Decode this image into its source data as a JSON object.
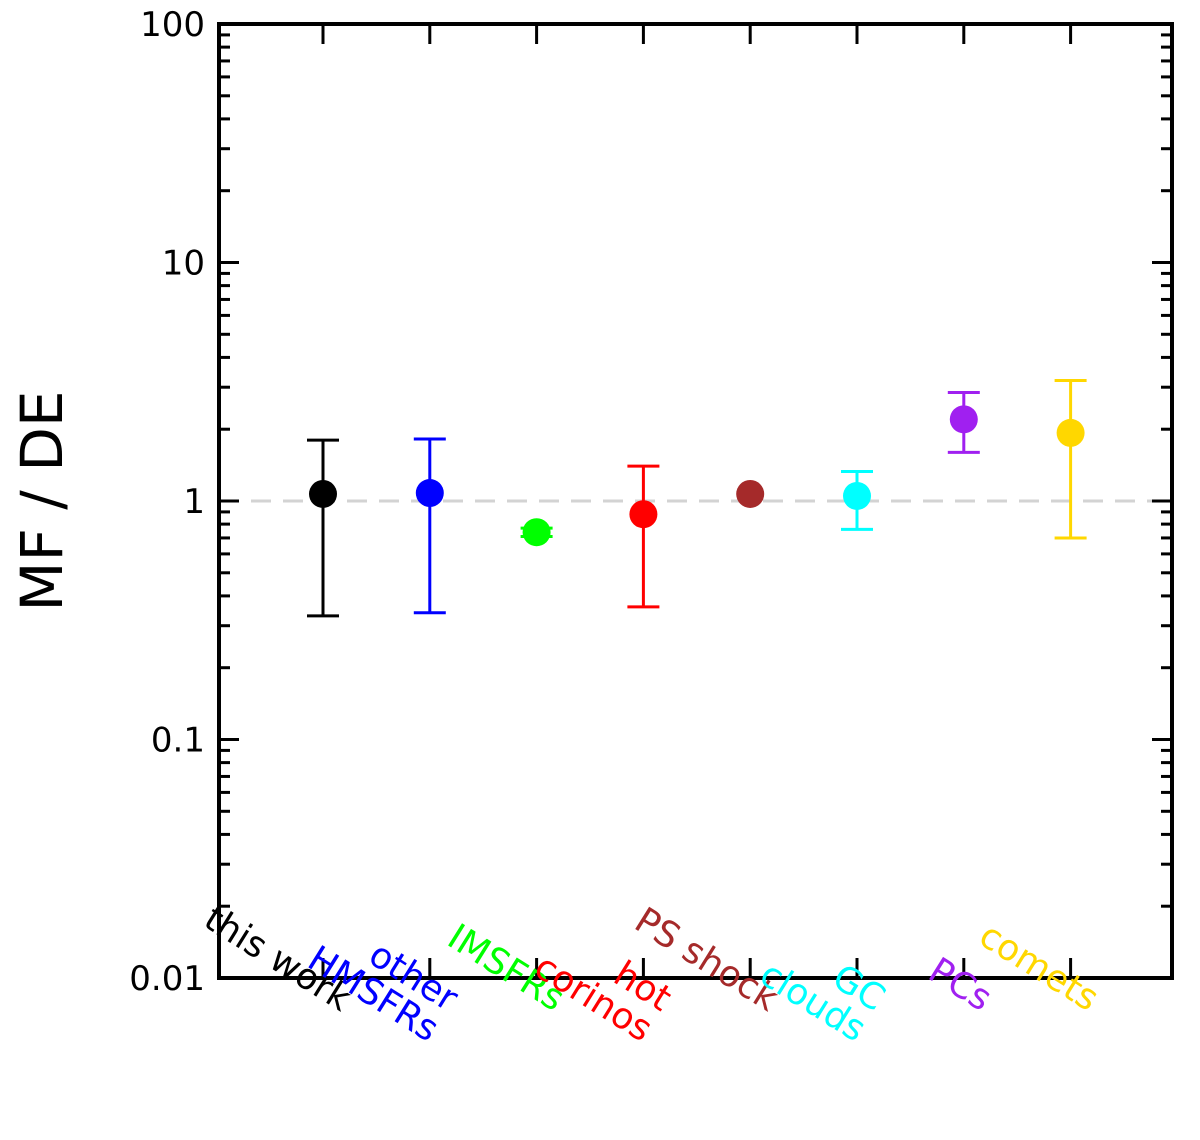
{
  "chart_data": {
    "type": "scatter",
    "ylabel": "MF / DE",
    "yscale": "log",
    "ylim": [
      0.01,
      100
    ],
    "yticks": [
      {
        "value": 0.01,
        "label": "0.01"
      },
      {
        "value": 0.1,
        "label": "0.1"
      },
      {
        "value": 1,
        "label": "1"
      },
      {
        "value": 10,
        "label": "10"
      },
      {
        "value": 100,
        "label": "100"
      }
    ],
    "reference_line": {
      "value": 1,
      "style": "dashed",
      "color": "#d3d3d3"
    },
    "points": [
      {
        "label": [
          "this work"
        ],
        "value": 1.07,
        "low": 0.33,
        "high": 1.8,
        "color": "#000000"
      },
      {
        "label": [
          "other",
          "HMSFRs"
        ],
        "value": 1.08,
        "low": 0.34,
        "high": 1.82,
        "color": "#0000ff"
      },
      {
        "label": [
          "IMSFRs"
        ],
        "value": 0.74,
        "low": 0.71,
        "high": 0.77,
        "color": "#00ff00"
      },
      {
        "label": [
          "hot",
          "corinos"
        ],
        "value": 0.88,
        "low": 0.36,
        "high": 1.4,
        "color": "#ff0000"
      },
      {
        "label": [
          "PS shock"
        ],
        "value": 1.07,
        "low": null,
        "high": null,
        "color": "#a52a2a"
      },
      {
        "label": [
          "GC",
          "clouds"
        ],
        "value": 1.05,
        "low": 0.76,
        "high": 1.33,
        "color": "#00ffff"
      },
      {
        "label": [
          "PCs"
        ],
        "value": 2.2,
        "low": 1.6,
        "high": 2.85,
        "color": "#a020f0"
      },
      {
        "label": [
          "comets"
        ],
        "value": 1.93,
        "low": 0.7,
        "high": 3.2,
        "color": "#ffd700"
      }
    ]
  }
}
